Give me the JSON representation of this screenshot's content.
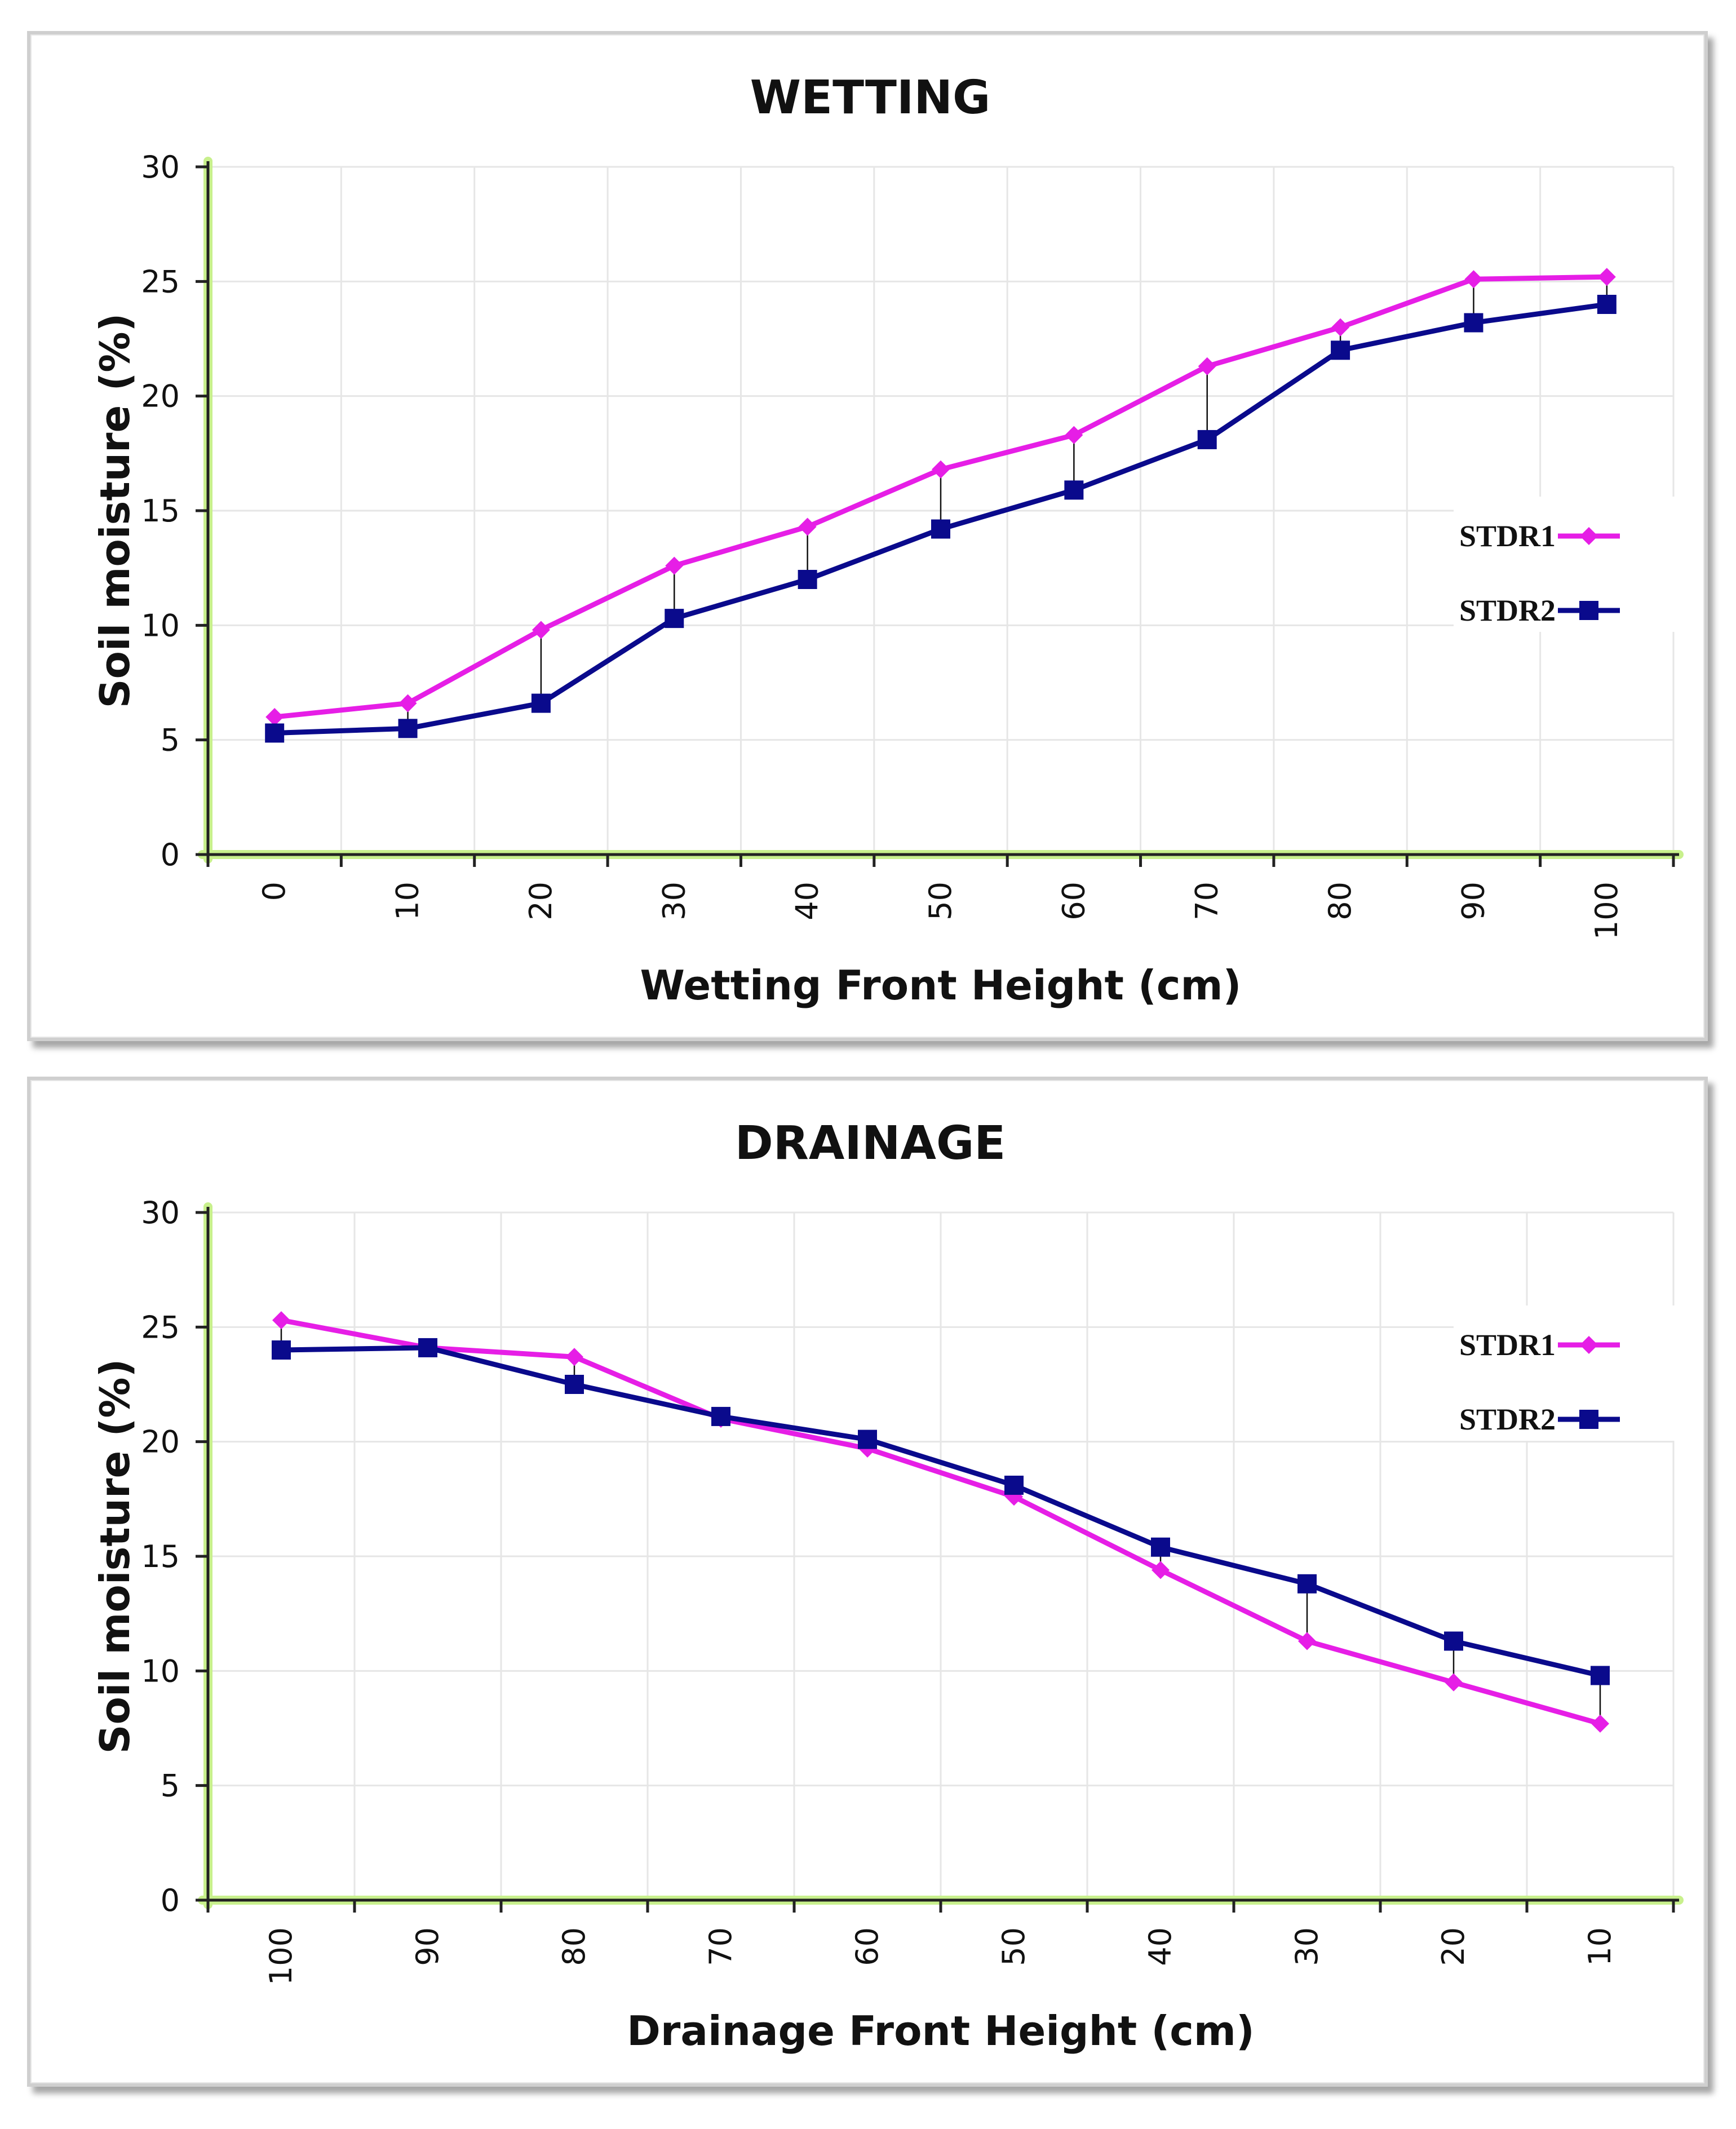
{
  "colors": {
    "series1": "#e61ee6",
    "series2": "#0a0a8c",
    "axis": "#222222",
    "axis_glow": "#c8f08c",
    "grid": "#e6e6e6"
  },
  "chart_data": [
    {
      "type": "line",
      "title": "WETTING",
      "xlabel": "Wetting Front Height (cm)",
      "ylabel": "Soil moisture (%)",
      "ylim": [
        0,
        30
      ],
      "yticks": [
        0,
        5,
        10,
        15,
        20,
        25,
        30
      ],
      "categories": [
        "0",
        "10",
        "20",
        "30",
        "40",
        "50",
        "60",
        "70",
        "80",
        "90",
        "100"
      ],
      "series": [
        {
          "name": "STDR1",
          "marker": "diamond",
          "values": [
            6.0,
            6.6,
            9.8,
            12.6,
            14.3,
            16.8,
            18.3,
            21.3,
            23.0,
            25.1,
            25.2
          ]
        },
        {
          "name": "STDR2",
          "marker": "square",
          "values": [
            5.3,
            5.5,
            6.6,
            10.3,
            12.0,
            14.2,
            15.9,
            18.1,
            22.0,
            23.2,
            24.0
          ]
        }
      ]
    },
    {
      "type": "line",
      "title": "DRAINAGE",
      "xlabel": "Drainage Front Height (cm)",
      "ylabel": "Soil moisture (%)",
      "ylim": [
        0,
        30
      ],
      "yticks": [
        0,
        5,
        10,
        15,
        20,
        25,
        30
      ],
      "categories": [
        "100",
        "90",
        "80",
        "70",
        "60",
        "50",
        "40",
        "30",
        "20",
        "10"
      ],
      "series": [
        {
          "name": "STDR1",
          "marker": "diamond",
          "values": [
            25.3,
            24.1,
            23.7,
            21.0,
            19.7,
            17.6,
            14.4,
            11.3,
            9.5,
            7.7
          ]
        },
        {
          "name": "STDR2",
          "marker": "square",
          "values": [
            24.0,
            24.1,
            22.5,
            21.1,
            20.1,
            18.1,
            15.4,
            13.8,
            11.3,
            9.8
          ]
        }
      ]
    }
  ]
}
